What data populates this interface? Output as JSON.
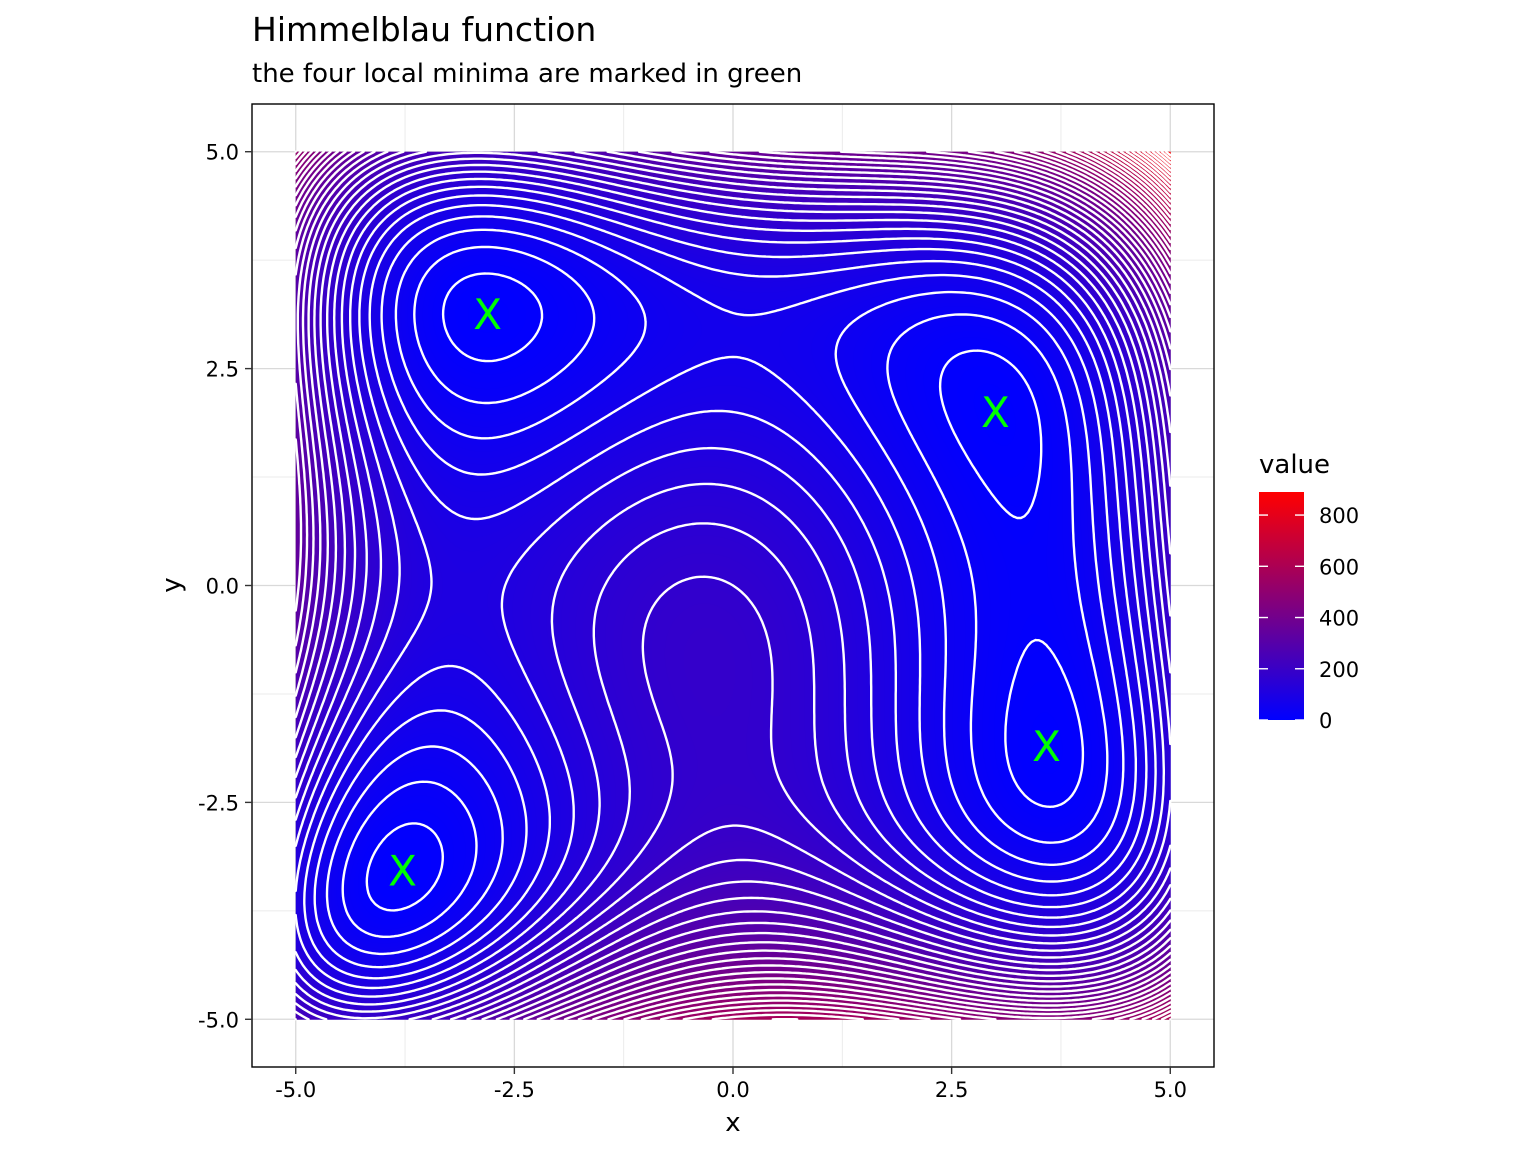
{
  "chart_data": {
    "type": "heatmap",
    "title": "Himmelblau function",
    "subtitle": "the four local minima are marked in green",
    "xlabel": "x",
    "ylabel": "y",
    "xlim": [
      -5.5,
      5.5
    ],
    "ylim": [
      -5.55,
      5.55
    ],
    "x_ticks": [
      -5.0,
      -2.5,
      0.0,
      2.5,
      5.0
    ],
    "y_ticks": [
      -5.0,
      -2.5,
      0.0,
      2.5,
      5.0
    ],
    "x_tick_labels": [
      "-5.0",
      "-2.5",
      "0.0",
      "2.5",
      "5.0"
    ],
    "y_tick_labels": [
      "-5.0",
      "-2.5",
      "0.0",
      "2.5",
      "5.0"
    ],
    "domain": {
      "x": [
        -5,
        5
      ],
      "y": [
        -5,
        5
      ]
    },
    "grid": true,
    "contour_lines": true,
    "contour_color": "#ffffff",
    "legend": {
      "title": "value",
      "position": "right",
      "range": [
        0,
        890
      ],
      "breaks": [
        0,
        200,
        400,
        600,
        800
      ],
      "labels": [
        "0",
        "200",
        "400",
        "600",
        "800"
      ],
      "low_color": "#0000ff",
      "high_color": "#ff0000"
    },
    "minima": [
      {
        "x": 3.0,
        "y": 2.0,
        "label": "X"
      },
      {
        "x": -2.805118,
        "y": 3.131312,
        "label": "X"
      },
      {
        "x": -3.77931,
        "y": -3.283186,
        "label": "X"
      },
      {
        "x": 3.584428,
        "y": -1.848126,
        "label": "X"
      }
    ],
    "minima_color": "#00ff00"
  }
}
